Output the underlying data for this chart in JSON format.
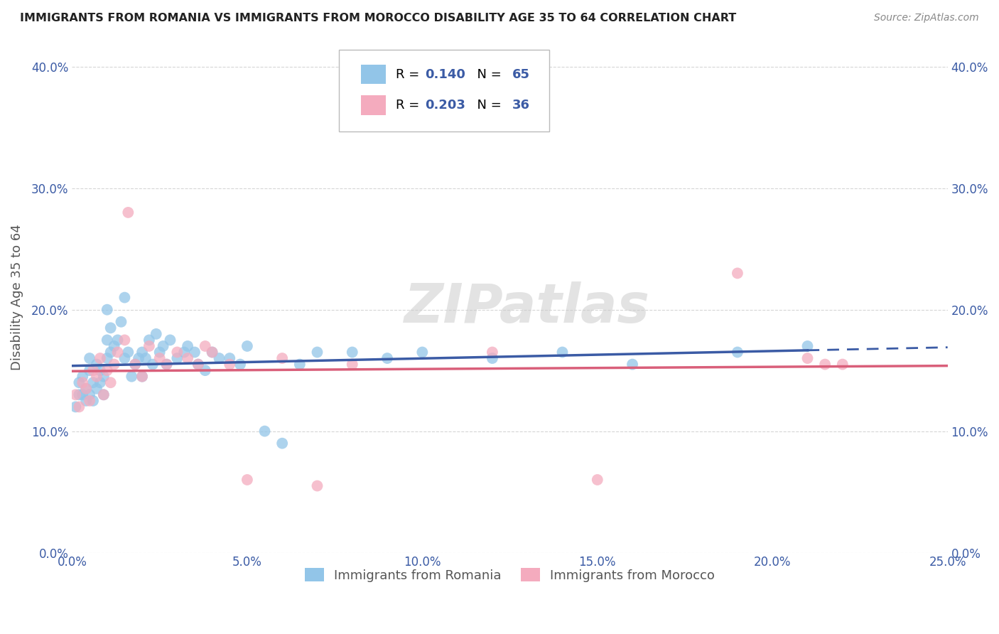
{
  "title": "IMMIGRANTS FROM ROMANIA VS IMMIGRANTS FROM MOROCCO DISABILITY AGE 35 TO 64 CORRELATION CHART",
  "source": "Source: ZipAtlas.com",
  "ylabel": "Disability Age 35 to 64",
  "xlim": [
    0.0,
    0.25
  ],
  "ylim": [
    0.0,
    0.42
  ],
  "xticks": [
    0.0,
    0.05,
    0.1,
    0.15,
    0.2,
    0.25
  ],
  "yticks": [
    0.0,
    0.1,
    0.2,
    0.3,
    0.4
  ],
  "xtick_labels": [
    "0.0%",
    "5.0%",
    "10.0%",
    "15.0%",
    "20.0%",
    "25.0%"
  ],
  "ytick_labels": [
    "0.0%",
    "10.0%",
    "20.0%",
    "30.0%",
    "40.0%"
  ],
  "romania_color": "#92C5E8",
  "morocco_color": "#F4ABBE",
  "regression_color_romania": "#3B5BA5",
  "regression_color_morocco": "#D95F7A",
  "legend_text_color": "#3B5BA5",
  "R_romania": 0.14,
  "N_romania": 65,
  "R_morocco": 0.203,
  "N_morocco": 36,
  "watermark": "ZIPatlas",
  "romania_scatter_x": [
    0.001,
    0.002,
    0.002,
    0.003,
    0.003,
    0.004,
    0.004,
    0.005,
    0.005,
    0.005,
    0.006,
    0.006,
    0.007,
    0.007,
    0.008,
    0.008,
    0.009,
    0.009,
    0.01,
    0.01,
    0.01,
    0.011,
    0.011,
    0.012,
    0.013,
    0.014,
    0.015,
    0.015,
    0.016,
    0.017,
    0.018,
    0.019,
    0.02,
    0.02,
    0.021,
    0.022,
    0.023,
    0.024,
    0.025,
    0.026,
    0.027,
    0.028,
    0.03,
    0.032,
    0.033,
    0.035,
    0.036,
    0.038,
    0.04,
    0.042,
    0.045,
    0.048,
    0.05,
    0.055,
    0.06,
    0.065,
    0.07,
    0.08,
    0.09,
    0.1,
    0.12,
    0.14,
    0.16,
    0.19,
    0.21
  ],
  "romania_scatter_y": [
    0.12,
    0.13,
    0.14,
    0.13,
    0.145,
    0.125,
    0.135,
    0.13,
    0.15,
    0.16,
    0.125,
    0.14,
    0.135,
    0.155,
    0.14,
    0.15,
    0.145,
    0.13,
    0.16,
    0.175,
    0.2,
    0.165,
    0.185,
    0.17,
    0.175,
    0.19,
    0.16,
    0.21,
    0.165,
    0.145,
    0.155,
    0.16,
    0.145,
    0.165,
    0.16,
    0.175,
    0.155,
    0.18,
    0.165,
    0.17,
    0.155,
    0.175,
    0.16,
    0.165,
    0.17,
    0.165,
    0.155,
    0.15,
    0.165,
    0.16,
    0.16,
    0.155,
    0.17,
    0.1,
    0.09,
    0.155,
    0.165,
    0.165,
    0.16,
    0.165,
    0.16,
    0.165,
    0.155,
    0.165,
    0.17
  ],
  "morocco_scatter_x": [
    0.001,
    0.002,
    0.003,
    0.004,
    0.005,
    0.006,
    0.007,
    0.008,
    0.009,
    0.01,
    0.011,
    0.012,
    0.013,
    0.015,
    0.016,
    0.018,
    0.02,
    0.022,
    0.025,
    0.027,
    0.03,
    0.033,
    0.036,
    0.038,
    0.04,
    0.045,
    0.05,
    0.06,
    0.07,
    0.08,
    0.12,
    0.15,
    0.19,
    0.21,
    0.215,
    0.22
  ],
  "morocco_scatter_y": [
    0.13,
    0.12,
    0.14,
    0.135,
    0.125,
    0.15,
    0.145,
    0.16,
    0.13,
    0.15,
    0.14,
    0.155,
    0.165,
    0.175,
    0.28,
    0.155,
    0.145,
    0.17,
    0.16,
    0.155,
    0.165,
    0.16,
    0.155,
    0.17,
    0.165,
    0.155,
    0.06,
    0.16,
    0.055,
    0.155,
    0.165,
    0.06,
    0.23,
    0.16,
    0.155,
    0.155
  ]
}
